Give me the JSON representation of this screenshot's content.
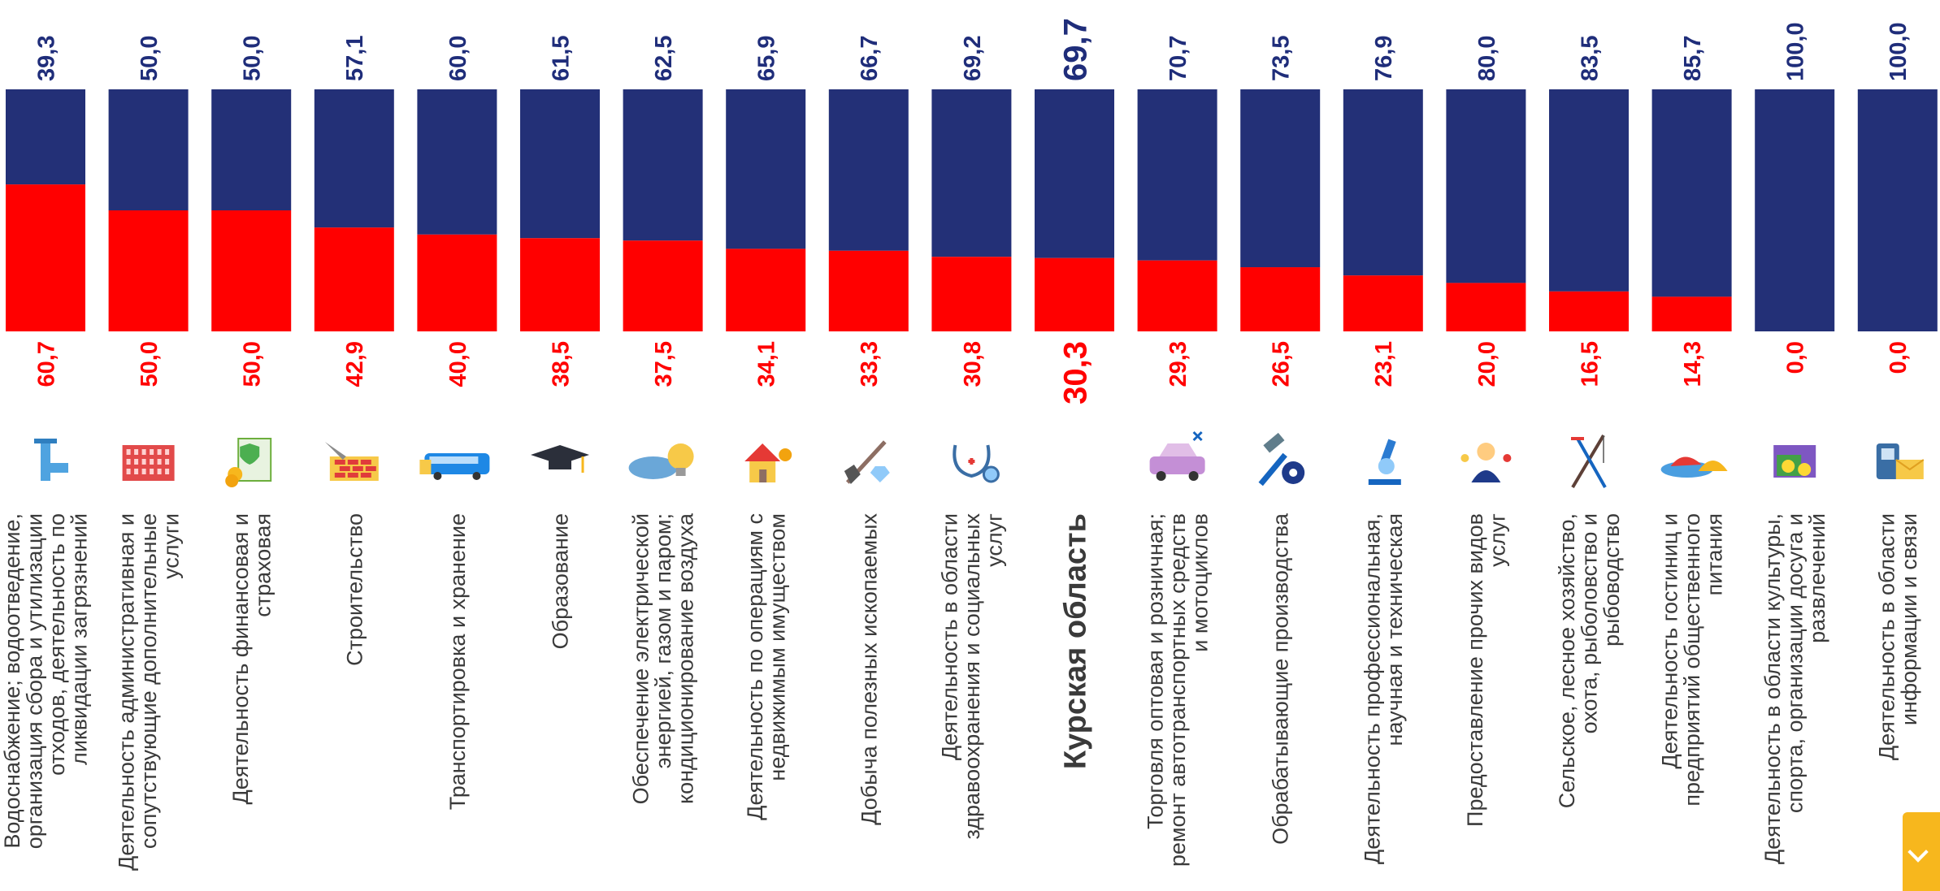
{
  "chart_data": {
    "type": "bar",
    "stacked": true,
    "normalized_to": 100,
    "ylim": [
      0,
      100
    ],
    "colors": {
      "upper": "#233077",
      "lower": "#ff0000",
      "text": "#3a3a3a"
    },
    "categories": [
      {
        "label": "Водоснабжение; водоотведение, организация сбора и утилизации отходов, деятельность по ликвидации загрязнений",
        "lines": [
          "Водоснабжение; водоотведение,",
          "организация сбора и утилизации",
          "отходов, деятельность по",
          "ликвидации загрязнений"
        ],
        "upper": "39,3",
        "lower": "60,7",
        "upper_value": 39.3,
        "lower_value": 60.7,
        "icon": "water-pipe-icon"
      },
      {
        "label": "Деятельность административная и сопутствующие дополнительные услуги",
        "lines": [
          "Деятельность административная и",
          "сопутствующие дополнительные",
          "услуги"
        ],
        "upper": "50,0",
        "lower": "50,0",
        "upper_value": 50.0,
        "lower_value": 50.0,
        "icon": "office-building-icon"
      },
      {
        "label": "Деятельность финансовая и страховая",
        "lines": [
          "Деятельность финансовая и",
          "страховая"
        ],
        "upper": "50,0",
        "lower": "50,0",
        "upper_value": 50.0,
        "lower_value": 50.0,
        "icon": "insurance-document-icon"
      },
      {
        "label": "Строительство",
        "lines": [
          "Строительство"
        ],
        "upper": "57,1",
        "lower": "42,9",
        "upper_value": 57.1,
        "lower_value": 42.9,
        "icon": "brick-trowel-icon"
      },
      {
        "label": "Транспортировка и хранение",
        "lines": [
          "Транспортировка и хранение"
        ],
        "upper": "60,0",
        "lower": "40,0",
        "upper_value": 60.0,
        "lower_value": 40.0,
        "icon": "bus-icon"
      },
      {
        "label": "Образование",
        "lines": [
          "Образование"
        ],
        "upper": "61,5",
        "lower": "38,5",
        "upper_value": 61.5,
        "lower_value": 38.5,
        "icon": "graduation-cap-icon"
      },
      {
        "label": "Обеспечение электрической энергией, газом и паром; кондиционирование воздуха",
        "lines": [
          "Обеспечение электрической",
          "энергией, газом и паром;",
          "кондиционирование воздуха"
        ],
        "upper": "62,5",
        "lower": "37,5",
        "upper_value": 62.5,
        "lower_value": 37.5,
        "icon": "light-bulb-icon"
      },
      {
        "label": "Деятельность по операциям с недвижимым имуществом",
        "lines": [
          "Деятельность по операциям с",
          "недвижимым имуществом"
        ],
        "upper": "65,9",
        "lower": "34,1",
        "upper_value": 65.9,
        "lower_value": 34.1,
        "icon": "house-coins-icon"
      },
      {
        "label": "Добыча полезных ископаемых",
        "lines": [
          "Добыча полезных ископаемых"
        ],
        "upper": "66,7",
        "lower": "33,3",
        "upper_value": 66.7,
        "lower_value": 33.3,
        "icon": "shovel-diamond-icon"
      },
      {
        "label": "Деятельность в области здравоохранения и социальных услуг",
        "lines": [
          "Деятельность в области",
          "здравоохранения и социальных",
          "услуг"
        ],
        "upper": "69,2",
        "lower": "30,8",
        "upper_value": 69.2,
        "lower_value": 30.8,
        "icon": "stethoscope-icon"
      },
      {
        "label": "Курская область",
        "lines": [
          "Курская область"
        ],
        "upper": "69,7",
        "lower": "30,3",
        "upper_value": 69.7,
        "lower_value": 30.3,
        "icon": "",
        "highlight": true
      },
      {
        "label": "Торговля оптовая и розничная; ремонт автотранспортных средств и мотоциклов",
        "lines": [
          "Торговля оптовая и розничная;",
          "ремонт автотранспортных средств",
          "и мотоциклов"
        ],
        "upper": "70,7",
        "lower": "29,3",
        "upper_value": 70.7,
        "lower_value": 29.3,
        "icon": "car-repair-icon"
      },
      {
        "label": "Обрабатывающие производства",
        "lines": [
          "Обрабатывающие производства"
        ],
        "upper": "73,5",
        "lower": "26,5",
        "upper_value": 73.5,
        "lower_value": 26.5,
        "icon": "hammer-gear-icon"
      },
      {
        "label": "Деятельность профессиональная, научная и техническая",
        "lines": [
          "Деятельность профессиональная,",
          "научная и техническая"
        ],
        "upper": "76,9",
        "lower": "23,1",
        "upper_value": 76.9,
        "lower_value": 23.1,
        "icon": "microscope-icon"
      },
      {
        "label": "Предоставление прочих видов услуг",
        "lines": [
          "Предоставление прочих видов",
          "услуг"
        ],
        "upper": "80,0",
        "lower": "20,0",
        "upper_value": 80.0,
        "lower_value": 20.0,
        "icon": "service-worker-icon"
      },
      {
        "label": "Сельское, лесное хозяйство, охота, рыболовство и рыбоводство",
        "lines": [
          "Сельское, лесное хозяйство,",
          "охота, рыболовство и",
          "рыбоводство"
        ],
        "upper": "83,5",
        "lower": "16,5",
        "upper_value": 83.5,
        "lower_value": 16.5,
        "icon": "fishing-rod-icon"
      },
      {
        "label": "Деятельность гостиниц и предприятий общественного питания",
        "lines": [
          "Деятельность гостиниц и",
          "предприятий общественного",
          "питания"
        ],
        "upper": "85,7",
        "lower": "14,3",
        "upper_value": 85.7,
        "lower_value": 14.3,
        "icon": "food-dish-icon"
      },
      {
        "label": "Деятельность в области культуры, спорта, организации досуга и развлечений",
        "lines": [
          "Деятельность в области культуры,",
          "спорта, организации досуга и",
          "развлечений"
        ],
        "upper": "100,0",
        "lower": "0,0",
        "upper_value": 100.0,
        "lower_value": 0.0,
        "icon": "theater-ticket-icon"
      },
      {
        "label": "Деятельность в области информации и связи",
        "lines": [
          "Деятельность в области",
          "информации и связи"
        ],
        "upper": "100,0",
        "lower": "0,0",
        "upper_value": 100.0,
        "lower_value": 0.0,
        "icon": "phone-envelope-icon"
      }
    ]
  }
}
